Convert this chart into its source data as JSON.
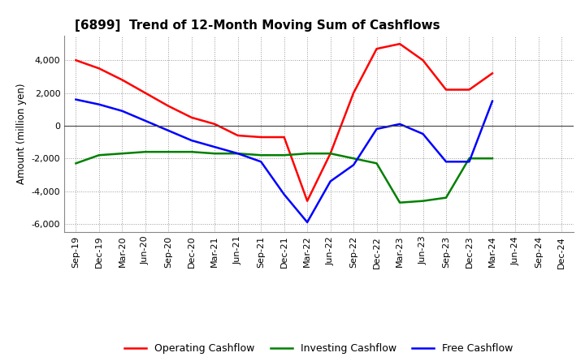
{
  "title": "[6899]  Trend of 12-Month Moving Sum of Cashflows",
  "ylabel": "Amount (million yen)",
  "x_labels": [
    "Sep-19",
    "Dec-19",
    "Mar-20",
    "Jun-20",
    "Sep-20",
    "Dec-20",
    "Mar-21",
    "Jun-21",
    "Sep-21",
    "Dec-21",
    "Mar-22",
    "Jun-22",
    "Sep-22",
    "Dec-22",
    "Mar-23",
    "Jun-23",
    "Sep-23",
    "Dec-23",
    "Mar-24",
    "Jun-24",
    "Sep-24",
    "Dec-24"
  ],
  "operating": [
    4000,
    3500,
    2800,
    2000,
    1200,
    500,
    100,
    -600,
    -700,
    -700,
    -4600,
    -1700,
    2000,
    4700,
    5000,
    4000,
    2200,
    2200,
    3200,
    null,
    null,
    null
  ],
  "investing": [
    -2300,
    -1800,
    -1700,
    -1600,
    -1600,
    -1600,
    -1700,
    -1700,
    -1800,
    -1800,
    -1700,
    -1700,
    -2000,
    -2300,
    -4700,
    -4600,
    -4400,
    -2000,
    -2000,
    null,
    null,
    null
  ],
  "free": [
    1600,
    1300,
    900,
    300,
    -300,
    -900,
    -1300,
    -1700,
    -2200,
    -4200,
    -5900,
    -3400,
    -2400,
    -200,
    100,
    -500,
    -2200,
    -2200,
    1500,
    null,
    null,
    null
  ],
  "operating_color": "#ff0000",
  "investing_color": "#008000",
  "free_color": "#0000ff",
  "ylim": [
    -6500,
    5500
  ],
  "yticks": [
    -6000,
    -4000,
    -2000,
    0,
    2000,
    4000
  ],
  "background_color": "#ffffff"
}
